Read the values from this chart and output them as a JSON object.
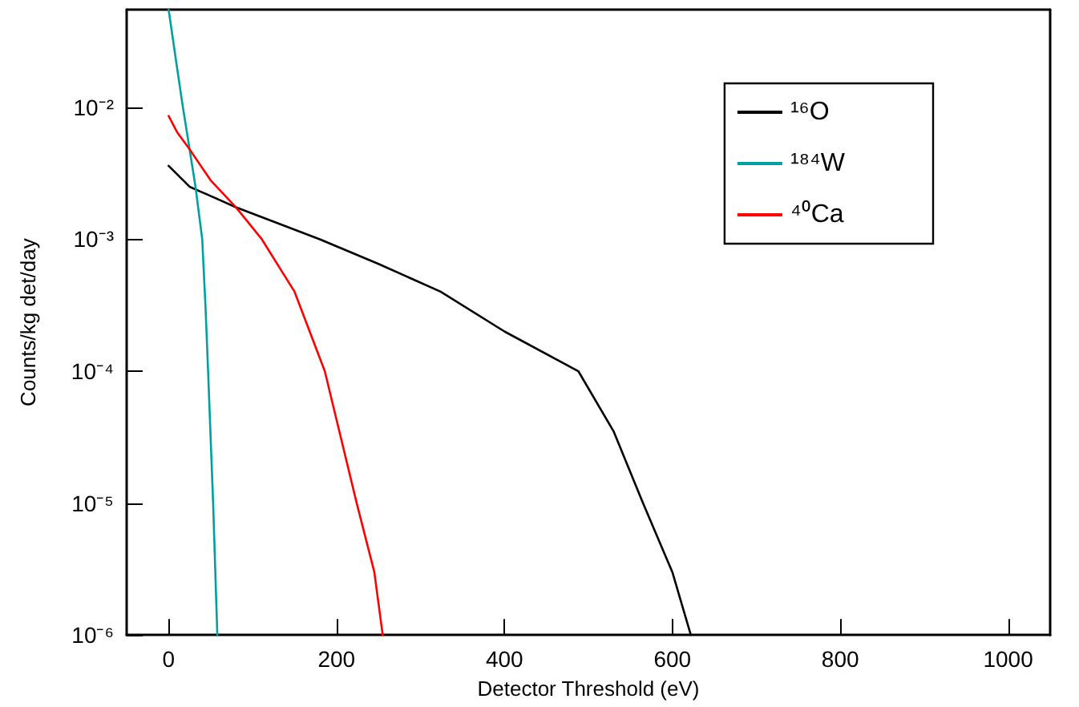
{
  "chart_data": {
    "type": "line",
    "xlabel": "Detector Threshold (eV)",
    "ylabel": "Counts/kg det/day",
    "log": "y",
    "grid": false,
    "legend": "top right",
    "marker": "none",
    "line_style": "solid",
    "xlim": [
      -50,
      1050
    ],
    "xticks": [
      0,
      200,
      400,
      600,
      800,
      1000
    ],
    "ylim": [
      1e-06,
      0.055
    ],
    "yticks": [
      {
        "value": 1e-06,
        "label": "10⁻⁶"
      },
      {
        "value": 1e-05,
        "label": "10⁻⁵"
      },
      {
        "value": 0.0001,
        "label": "10⁻⁴"
      },
      {
        "value": 0.001,
        "label": "10⁻³"
      },
      {
        "value": 0.01,
        "label": "10⁻²"
      }
    ],
    "series": [
      {
        "name": "¹⁶O",
        "color": "#000000",
        "x": [
          0,
          25,
          80,
          180,
          250,
          324,
          400,
          488,
          530,
          565,
          600,
          622
        ],
        "values": [
          0.0036,
          0.0025,
          0.00175,
          0.001,
          0.00065,
          0.0004,
          0.0002,
          0.0001,
          3.5e-05,
          1e-05,
          3e-06,
          1e-06
        ]
      },
      {
        "name": "¹⁸⁴W",
        "color": "#00a0a0",
        "x": [
          0,
          10,
          17,
          25,
          32,
          40,
          44,
          47,
          53,
          58
        ],
        "values": [
          0.055,
          0.02,
          0.01,
          0.0048,
          0.0025,
          0.001,
          0.0003,
          0.0001,
          1e-05,
          1e-06
        ]
      },
      {
        "name": "⁴⁰Ca",
        "color": "#ff0000",
        "x": [
          0,
          10,
          25,
          50,
          80,
          111,
          150,
          186,
          224,
          245,
          255
        ],
        "values": [
          0.0086,
          0.0065,
          0.0048,
          0.0028,
          0.00175,
          0.001,
          0.0004,
          0.0001,
          1e-05,
          3e-06,
          1e-06
        ]
      }
    ]
  }
}
